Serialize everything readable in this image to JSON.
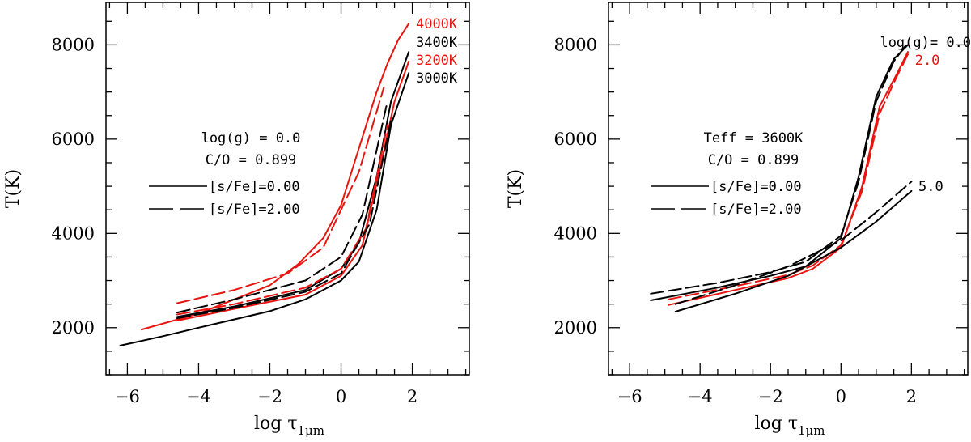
{
  "colors": {
    "black": "#000000",
    "red": "#e8140f"
  },
  "chart_data": [
    {
      "type": "line",
      "xlabel_main": "log τ",
      "xlabel_sub": "1μm",
      "ylabel": "T(K)",
      "xlim": [
        -6.6,
        3.6
      ],
      "ylim": [
        1000,
        8900
      ],
      "xticks": [
        -6,
        -4,
        -2,
        0,
        2
      ],
      "xtick_labels": [
        "−6",
        "−4",
        "−2",
        "0",
        "2"
      ],
      "yticks": [
        2000,
        4000,
        6000,
        8000
      ],
      "ytick_labels": [
        "2000",
        "4000",
        "6000",
        "8000"
      ],
      "annotation_lines": [
        "log(g) = 0.0",
        "C/O = 0.899"
      ],
      "legend": [
        {
          "label": "[s/Fe]=0.00",
          "style": "solid"
        },
        {
          "label": "[s/Fe]=2.00",
          "style": "dashed"
        }
      ],
      "series": [
        {
          "name": "4000K [s/Fe]=0.00",
          "color": "red",
          "style": "solid",
          "x": [
            -5.6,
            -4,
            -2,
            -1.2,
            -0.5,
            0,
            0.5,
            1,
            1.3,
            1.6,
            1.9
          ],
          "y": [
            1960,
            2300,
            2900,
            3350,
            3900,
            4600,
            5800,
            7000,
            7600,
            8100,
            8450
          ]
        },
        {
          "name": "4000K [s/Fe]=2.00",
          "color": "red",
          "style": "dashed",
          "x": [
            -4.6,
            -3,
            -1.5,
            -0.5,
            0.5,
            1.2
          ],
          "y": [
            2520,
            2800,
            3150,
            3700,
            5300,
            7100
          ]
        },
        {
          "name": "3400K [s/Fe]=0.00",
          "color": "black",
          "style": "solid",
          "x": [
            -4.6,
            -3,
            -1,
            0,
            0.5,
            1,
            1.4,
            1.9
          ],
          "y": [
            2230,
            2450,
            2800,
            3250,
            3800,
            5200,
            6800,
            7850
          ]
        },
        {
          "name": "3400K [s/Fe]=2.00",
          "color": "black",
          "style": "dashed",
          "x": [
            -4.6,
            -3,
            -1,
            0,
            0.6,
            1.3
          ],
          "y": [
            2320,
            2600,
            3000,
            3500,
            4400,
            6800
          ]
        },
        {
          "name": "3200K [s/Fe]=0.00",
          "color": "red",
          "style": "solid",
          "x": [
            -4.6,
            -3,
            -1,
            0,
            0.6,
            1.1,
            1.5,
            1.9
          ],
          "y": [
            2150,
            2400,
            2700,
            3100,
            3750,
            5400,
            6800,
            7650
          ]
        },
        {
          "name": "3200K [s/Fe]=2.00",
          "color": "red",
          "style": "dashed",
          "x": [
            -4.6,
            -3,
            -1,
            0,
            0.7,
            1.3
          ],
          "y": [
            2280,
            2500,
            2850,
            3250,
            4100,
            6300
          ]
        },
        {
          "name": "3000K [s/Fe]=0.00",
          "color": "black",
          "style": "solid",
          "x": [
            -6.2,
            -5,
            -4,
            -2,
            -1,
            0,
            0.5,
            1,
            1.4,
            1.9
          ],
          "y": [
            1620,
            1820,
            2000,
            2350,
            2600,
            3000,
            3400,
            4500,
            6300,
            7400
          ]
        },
        {
          "name": "3000K [s/Fe]=2.00",
          "color": "black",
          "style": "dashed",
          "x": [
            -4.6,
            -3,
            -1,
            0,
            0.8,
            1.4
          ],
          "y": [
            2200,
            2420,
            2760,
            3150,
            4200,
            6400
          ]
        }
      ],
      "curve_labels": [
        {
          "text": "4000K",
          "color": "red",
          "x": 2.1,
          "y": 8450
        },
        {
          "text": "3400K",
          "color": "black",
          "x": 2.1,
          "y": 8060
        },
        {
          "text": "3200K",
          "color": "red",
          "x": 2.1,
          "y": 7680
        },
        {
          "text": "3000K",
          "color": "black",
          "x": 2.1,
          "y": 7300
        }
      ]
    },
    {
      "type": "line",
      "xlabel_main": "log τ",
      "xlabel_sub": "1μm",
      "ylabel": "T(K)",
      "xlim": [
        -6.6,
        3.6
      ],
      "ylim": [
        1000,
        8900
      ],
      "xticks": [
        -6,
        -4,
        -2,
        0,
        2
      ],
      "xtick_labels": [
        "−6",
        "−4",
        "−2",
        "0",
        "2"
      ],
      "yticks": [
        2000,
        4000,
        6000,
        8000
      ],
      "ytick_labels": [
        "2000",
        "4000",
        "6000",
        "8000"
      ],
      "annotation_lines": [
        "Teff = 3600K",
        "C/O = 0.899"
      ],
      "legend": [
        {
          "label": "[s/Fe]=0.00",
          "style": "solid"
        },
        {
          "label": "[s/Fe]=2.00",
          "style": "dashed"
        }
      ],
      "series": [
        {
          "name": "log(g)=0.0 [s/Fe]=0.00",
          "color": "black",
          "style": "solid",
          "x": [
            -5.4,
            -3.5,
            -2,
            -1,
            0,
            0.5,
            1,
            1.5,
            1.9
          ],
          "y": [
            2580,
            2850,
            3100,
            3300,
            3900,
            5200,
            6900,
            7700,
            8000
          ]
        },
        {
          "name": "log(g)=0.0 [s/Fe]=2.00",
          "color": "black",
          "style": "dashed",
          "x": [
            -5.4,
            -3.5,
            -2,
            -1,
            0,
            0.5,
            1,
            1.5,
            1.9
          ],
          "y": [
            2720,
            2950,
            3180,
            3400,
            3950,
            5100,
            6800,
            7650,
            8050
          ]
        },
        {
          "name": "log(g)=2.0 [s/Fe]=0.00",
          "color": "red",
          "style": "solid",
          "x": [
            -4.9,
            -3,
            -1.5,
            -0.8,
            0,
            0.6,
            1.1,
            1.6,
            1.9
          ],
          "y": [
            2480,
            2800,
            3050,
            3250,
            3700,
            5000,
            6700,
            7400,
            7850
          ]
        },
        {
          "name": "log(g)=2.0 [s/Fe]=2.00",
          "color": "red",
          "style": "dashed",
          "x": [
            -4.9,
            -3,
            -1.5,
            -0.8,
            0,
            0.6,
            1.1,
            1.6,
            1.9
          ],
          "y": [
            2600,
            2880,
            3120,
            3320,
            3750,
            4900,
            6550,
            7350,
            7800
          ]
        },
        {
          "name": "log(g)=5.0 [s/Fe]=0.00",
          "color": "black",
          "style": "solid",
          "x": [
            -4.7,
            -3,
            -1.5,
            0,
            1,
            2
          ],
          "y": [
            2340,
            2720,
            3100,
            3700,
            4250,
            4900
          ]
        },
        {
          "name": "log(g)=5.0 [s/Fe]=2.00",
          "color": "black",
          "style": "dashed",
          "x": [
            -4.7,
            -3,
            -1.5,
            0,
            1,
            2
          ],
          "y": [
            2500,
            2900,
            3300,
            3850,
            4450,
            5100
          ]
        }
      ],
      "curve_labels": [
        {
          "text": "log(g)= 0.0",
          "color": "black",
          "x": 2.4,
          "y": 8060
        },
        {
          "text": "2.0",
          "color": "red",
          "x": 2.1,
          "y": 7680
        },
        {
          "text": "5.0",
          "color": "black",
          "x": 2.2,
          "y": 5000
        }
      ]
    }
  ]
}
